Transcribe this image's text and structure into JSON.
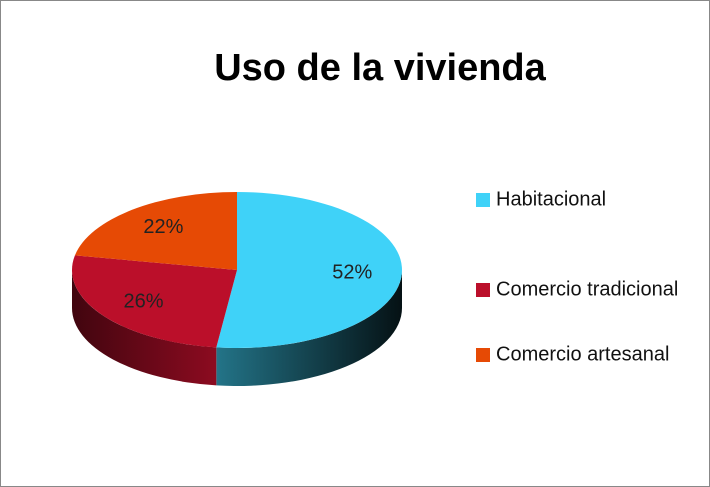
{
  "chart_data": {
    "type": "pie",
    "title": "Uso de la vivienda",
    "categories": [
      "Habitacional",
      "Comercio tradicional",
      "Comercio artesanal"
    ],
    "values": [
      52,
      26,
      22
    ],
    "value_labels": [
      "52%",
      "26%",
      "22%"
    ],
    "colors": [
      "#3fd2f8",
      "#bb0f2a",
      "#e64a05"
    ],
    "legend": "right"
  }
}
